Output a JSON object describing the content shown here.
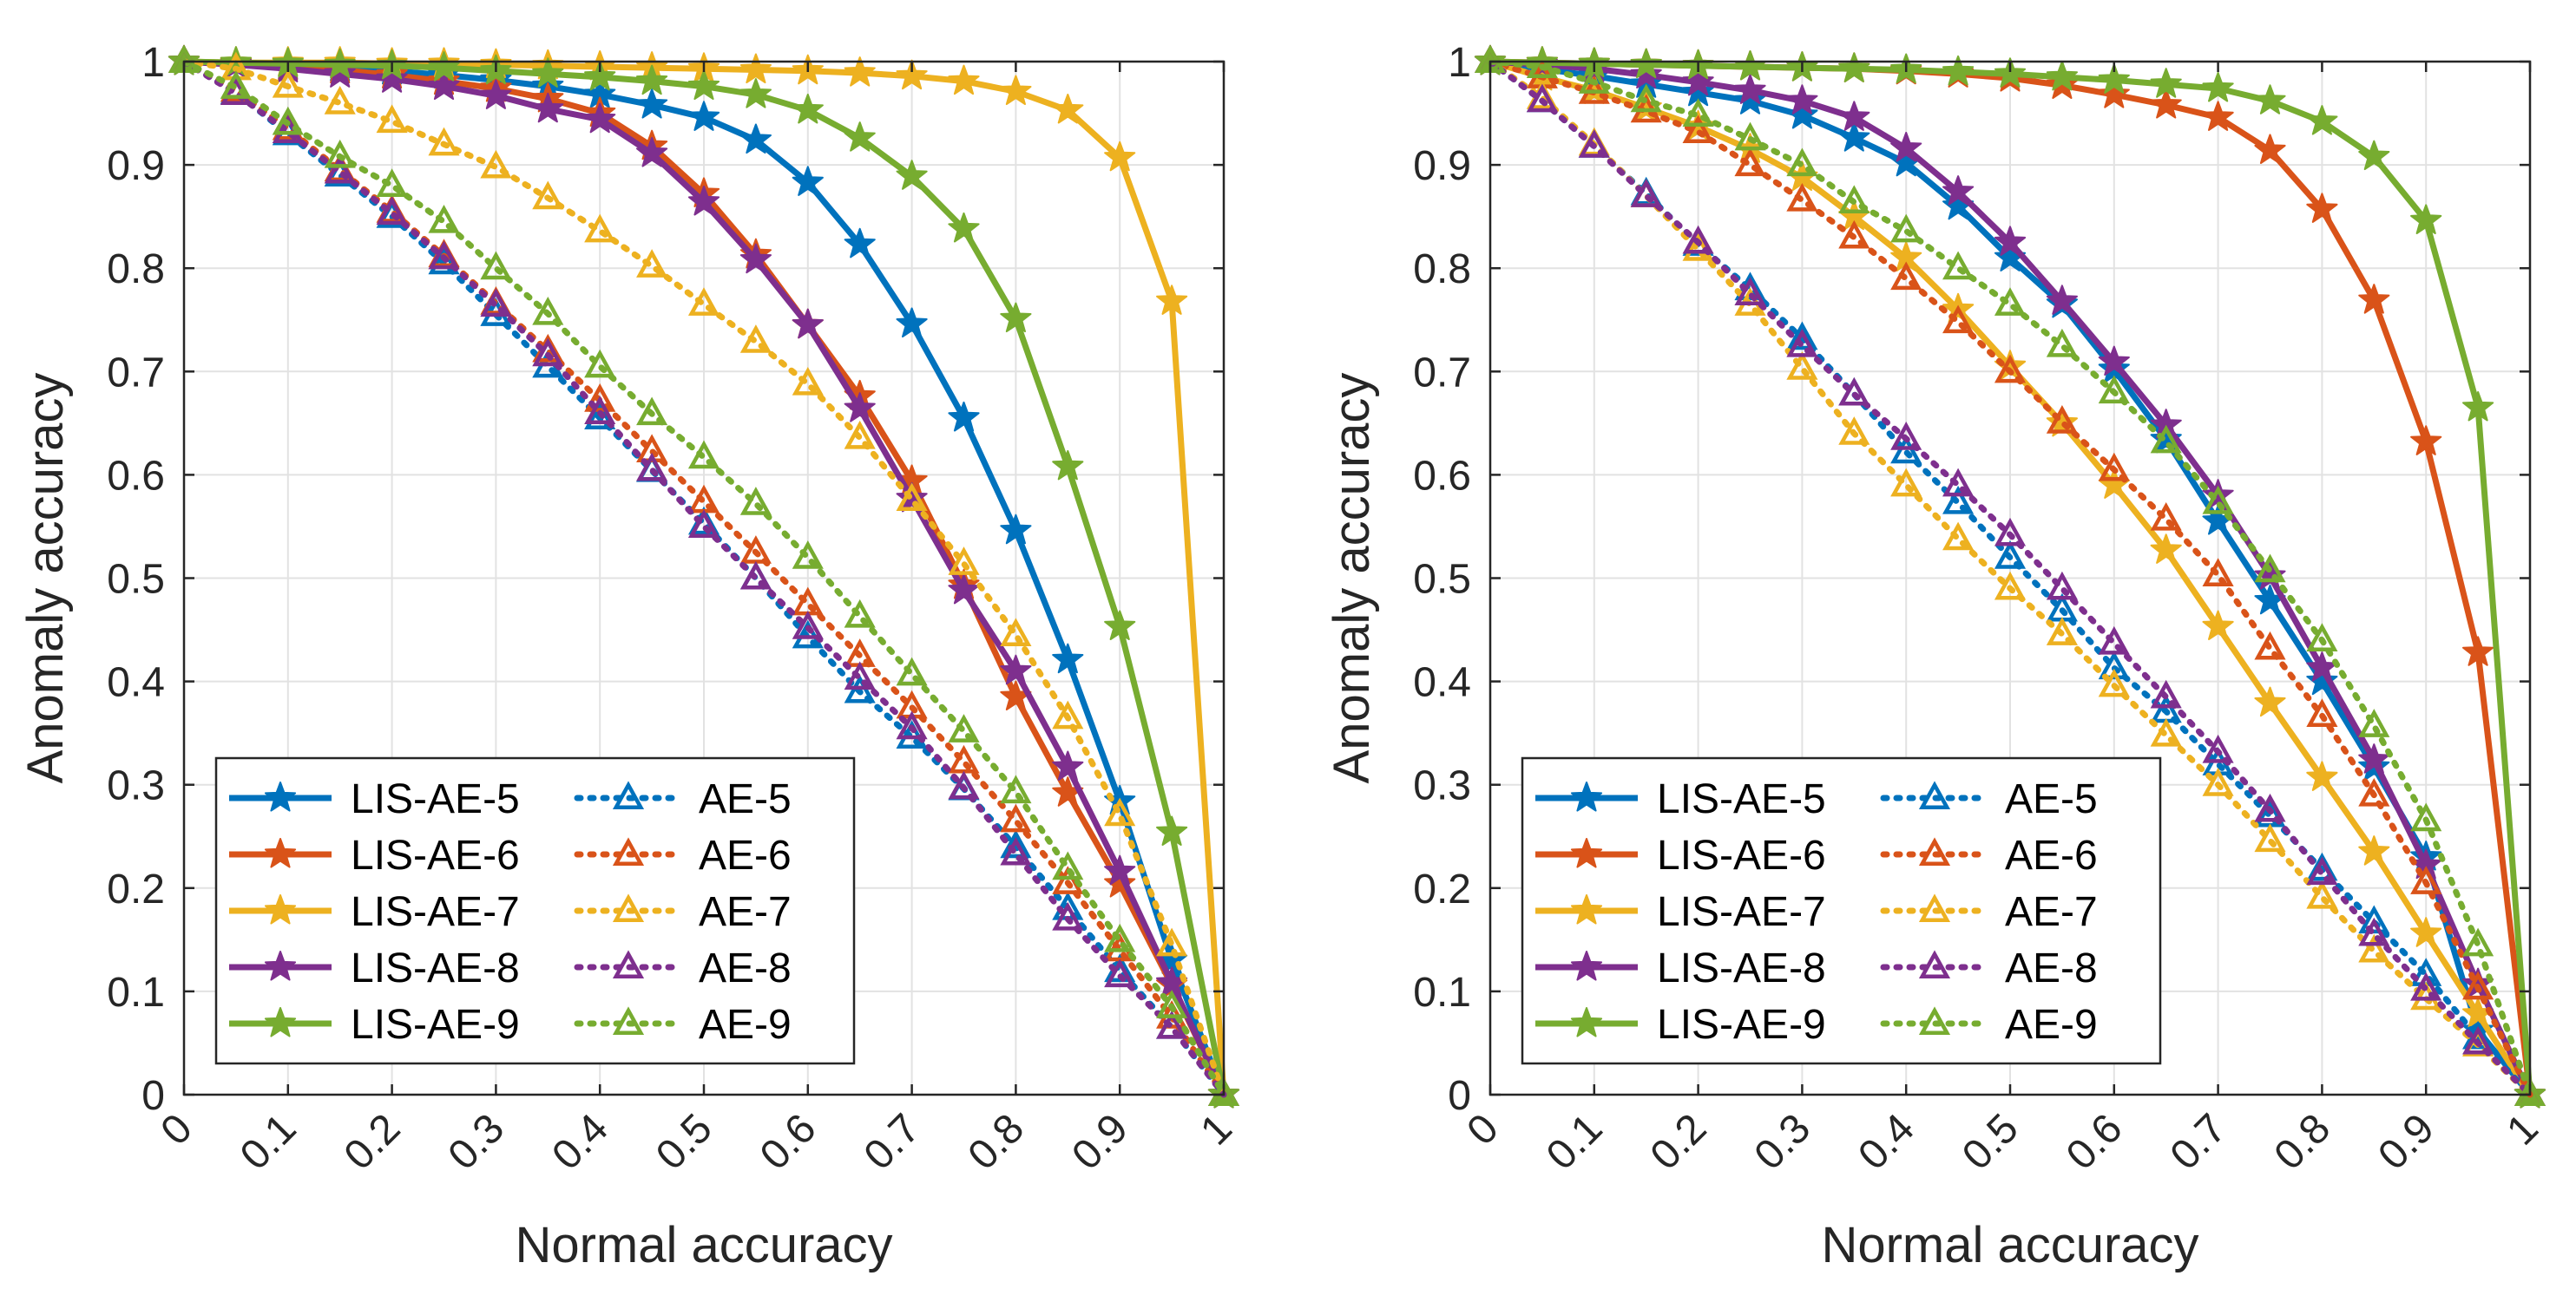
{
  "chart_data": [
    {
      "type": "line",
      "xlabel": "Normal accuracy",
      "ylabel": "Anomaly accuracy",
      "xlim": [
        0,
        1
      ],
      "ylim": [
        0,
        1
      ],
      "grid": true,
      "legend_position": "bottom-left",
      "x_ticks": [
        "0",
        "0.1",
        "0.2",
        "0.3",
        "0.4",
        "0.5",
        "0.6",
        "0.7",
        "0.8",
        "0.9",
        "1"
      ],
      "y_ticks": [
        "0",
        "0.1",
        "0.2",
        "0.3",
        "0.4",
        "0.5",
        "0.6",
        "0.7",
        "0.8",
        "0.9",
        "1"
      ],
      "x": [
        0,
        0.05,
        0.1,
        0.15,
        0.2,
        0.25,
        0.3,
        0.35,
        0.4,
        0.45,
        0.5,
        0.55,
        0.6,
        0.65,
        0.7,
        0.75,
        0.8,
        0.85,
        0.9,
        0.95,
        1
      ],
      "series": [
        {
          "name": "LIS-AE-5",
          "color": "#0072BD",
          "style": "solid",
          "marker": "star",
          "values": [
            1,
            0.998,
            0.996,
            0.994,
            0.991,
            0.987,
            0.982,
            0.976,
            0.968,
            0.958,
            0.946,
            0.924,
            0.883,
            0.823,
            0.746,
            0.655,
            0.546,
            0.421,
            0.284,
            0.13,
            0
          ]
        },
        {
          "name": "LIS-AE-6",
          "color": "#D95319",
          "style": "solid",
          "marker": "star",
          "values": [
            1,
            0.998,
            0.995,
            0.992,
            0.987,
            0.981,
            0.974,
            0.964,
            0.95,
            0.918,
            0.872,
            0.813,
            0.745,
            0.676,
            0.594,
            0.493,
            0.385,
            0.292,
            0.204,
            0.106,
            0
          ]
        },
        {
          "name": "LIS-AE-7",
          "color": "#EDB120",
          "style": "solid",
          "marker": "star",
          "values": [
            1,
            0.999,
            0.999,
            0.999,
            0.998,
            0.998,
            0.997,
            0.996,
            0.995,
            0.994,
            0.993,
            0.992,
            0.991,
            0.989,
            0.986,
            0.981,
            0.971,
            0.953,
            0.907,
            0.768,
            0
          ]
        },
        {
          "name": "LIS-AE-8",
          "color": "#7E2F8E",
          "style": "solid",
          "marker": "star",
          "values": [
            1,
            0.997,
            0.993,
            0.988,
            0.983,
            0.976,
            0.967,
            0.954,
            0.944,
            0.911,
            0.864,
            0.808,
            0.745,
            0.664,
            0.577,
            0.488,
            0.41,
            0.317,
            0.216,
            0.108,
            0
          ]
        },
        {
          "name": "LIS-AE-9",
          "color": "#77AC30",
          "style": "solid",
          "marker": "star",
          "values": [
            1,
            0.999,
            0.998,
            0.997,
            0.996,
            0.994,
            0.991,
            0.988,
            0.985,
            0.981,
            0.976,
            0.968,
            0.953,
            0.926,
            0.889,
            0.838,
            0.751,
            0.608,
            0.453,
            0.254,
            0
          ]
        },
        {
          "name": "AE-5",
          "color": "#0072BD",
          "style": "dotted",
          "marker": "triangle",
          "values": [
            1,
            0.97,
            0.93,
            0.89,
            0.85,
            0.805,
            0.755,
            0.705,
            0.655,
            0.604,
            0.553,
            0.5,
            0.443,
            0.39,
            0.346,
            0.296,
            0.24,
            0.18,
            0.12,
            0.065,
            0
          ]
        },
        {
          "name": "AE-6",
          "color": "#D95319",
          "style": "dotted",
          "marker": "triangle",
          "values": [
            1,
            0.972,
            0.935,
            0.895,
            0.855,
            0.812,
            0.766,
            0.72,
            0.672,
            0.623,
            0.574,
            0.525,
            0.475,
            0.425,
            0.375,
            0.322,
            0.265,
            0.205,
            0.14,
            0.075,
            0
          ]
        },
        {
          "name": "AE-7",
          "color": "#EDB120",
          "style": "dotted",
          "marker": "triangle",
          "values": [
            1,
            0.993,
            0.976,
            0.96,
            0.942,
            0.92,
            0.898,
            0.868,
            0.836,
            0.802,
            0.765,
            0.729,
            0.688,
            0.636,
            0.576,
            0.514,
            0.445,
            0.365,
            0.271,
            0.145,
            0
          ]
        },
        {
          "name": "AE-8",
          "color": "#7E2F8E",
          "style": "dotted",
          "marker": "triangle",
          "values": [
            1,
            0.969,
            0.932,
            0.893,
            0.853,
            0.81,
            0.764,
            0.716,
            0.66,
            0.605,
            0.55,
            0.5,
            0.452,
            0.403,
            0.355,
            0.297,
            0.233,
            0.17,
            0.115,
            0.065,
            0
          ]
        },
        {
          "name": "AE-9",
          "color": "#77AC30",
          "style": "dotted",
          "marker": "triangle",
          "values": [
            1,
            0.975,
            0.94,
            0.908,
            0.88,
            0.845,
            0.8,
            0.756,
            0.705,
            0.659,
            0.617,
            0.572,
            0.52,
            0.463,
            0.407,
            0.352,
            0.293,
            0.219,
            0.149,
            0.085,
            0
          ]
        }
      ]
    },
    {
      "type": "line",
      "xlabel": "Normal accuracy",
      "ylabel": "Anomaly accuracy",
      "xlim": [
        0,
        1
      ],
      "ylim": [
        0,
        1
      ],
      "grid": true,
      "legend_position": "bottom-left",
      "x_ticks": [
        "0",
        "0.1",
        "0.2",
        "0.3",
        "0.4",
        "0.5",
        "0.6",
        "0.7",
        "0.8",
        "0.9",
        "1"
      ],
      "y_ticks": [
        "0",
        "0.1",
        "0.2",
        "0.3",
        "0.4",
        "0.5",
        "0.6",
        "0.7",
        "0.8",
        "0.9",
        "1"
      ],
      "x": [
        0,
        0.05,
        0.1,
        0.15,
        0.2,
        0.25,
        0.3,
        0.35,
        0.4,
        0.45,
        0.5,
        0.55,
        0.6,
        0.65,
        0.7,
        0.75,
        0.8,
        0.85,
        0.9,
        0.95,
        1
      ],
      "series": [
        {
          "name": "LIS-AE-5",
          "color": "#0072BD",
          "style": "solid",
          "marker": "star",
          "values": [
            1,
            0.993,
            0.986,
            0.978,
            0.97,
            0.962,
            0.948,
            0.926,
            0.902,
            0.86,
            0.81,
            0.765,
            0.702,
            0.634,
            0.555,
            0.478,
            0.4,
            0.317,
            0.23,
            0.062,
            0
          ]
        },
        {
          "name": "LIS-AE-6",
          "color": "#D95319",
          "style": "solid",
          "marker": "star",
          "values": [
            1,
            0.999,
            0.998,
            0.997,
            0.996,
            0.995,
            0.994,
            0.993,
            0.991,
            0.988,
            0.984,
            0.977,
            0.968,
            0.958,
            0.946,
            0.914,
            0.857,
            0.769,
            0.632,
            0.428,
            0
          ]
        },
        {
          "name": "LIS-AE-7",
          "color": "#EDB120",
          "style": "solid",
          "marker": "star",
          "values": [
            1,
            0.985,
            0.972,
            0.955,
            0.937,
            0.915,
            0.888,
            0.85,
            0.81,
            0.76,
            0.705,
            0.65,
            0.59,
            0.527,
            0.453,
            0.379,
            0.307,
            0.235,
            0.156,
            0.078,
            0
          ]
        },
        {
          "name": "LIS-AE-8",
          "color": "#7E2F8E",
          "style": "solid",
          "marker": "star",
          "values": [
            1,
            0.997,
            0.993,
            0.987,
            0.98,
            0.972,
            0.962,
            0.946,
            0.916,
            0.874,
            0.825,
            0.768,
            0.709,
            0.648,
            0.58,
            0.502,
            0.413,
            0.324,
            0.222,
            0.107,
            0
          ]
        },
        {
          "name": "LIS-AE-9",
          "color": "#77AC30",
          "style": "solid",
          "marker": "star",
          "values": [
            1,
            0.999,
            0.998,
            0.997,
            0.996,
            0.995,
            0.994,
            0.993,
            0.992,
            0.99,
            0.988,
            0.985,
            0.982,
            0.978,
            0.974,
            0.962,
            0.942,
            0.908,
            0.846,
            0.665,
            0
          ]
        },
        {
          "name": "AE-5",
          "color": "#0072BD",
          "style": "dotted",
          "marker": "triangle",
          "values": [
            1,
            0.962,
            0.918,
            0.872,
            0.823,
            0.78,
            0.732,
            0.678,
            0.622,
            0.573,
            0.52,
            0.469,
            0.413,
            0.371,
            0.32,
            0.27,
            0.218,
            0.167,
            0.116,
            0.055,
            0
          ]
        },
        {
          "name": "AE-6",
          "color": "#D95319",
          "style": "dotted",
          "marker": "triangle",
          "values": [
            1,
            0.985,
            0.97,
            0.952,
            0.932,
            0.9,
            0.866,
            0.83,
            0.79,
            0.748,
            0.7,
            0.651,
            0.605,
            0.557,
            0.503,
            0.432,
            0.367,
            0.29,
            0.205,
            0.103,
            0
          ]
        },
        {
          "name": "AE-7",
          "color": "#EDB120",
          "style": "dotted",
          "marker": "triangle",
          "values": [
            1,
            0.965,
            0.92,
            0.87,
            0.818,
            0.765,
            0.703,
            0.64,
            0.59,
            0.538,
            0.49,
            0.446,
            0.396,
            0.348,
            0.3,
            0.246,
            0.191,
            0.139,
            0.093,
            0.048,
            0
          ]
        },
        {
          "name": "AE-8",
          "color": "#7E2F8E",
          "style": "dotted",
          "marker": "triangle",
          "values": [
            1,
            0.962,
            0.918,
            0.87,
            0.825,
            0.775,
            0.725,
            0.678,
            0.635,
            0.59,
            0.542,
            0.49,
            0.437,
            0.385,
            0.332,
            0.275,
            0.214,
            0.155,
            0.102,
            0.05,
            0
          ]
        },
        {
          "name": "AE-9",
          "color": "#77AC30",
          "style": "dotted",
          "marker": "triangle",
          "values": [
            1,
            0.995,
            0.98,
            0.962,
            0.948,
            0.925,
            0.9,
            0.864,
            0.836,
            0.8,
            0.765,
            0.725,
            0.68,
            0.632,
            0.573,
            0.507,
            0.44,
            0.357,
            0.266,
            0.145,
            0
          ]
        }
      ]
    }
  ]
}
